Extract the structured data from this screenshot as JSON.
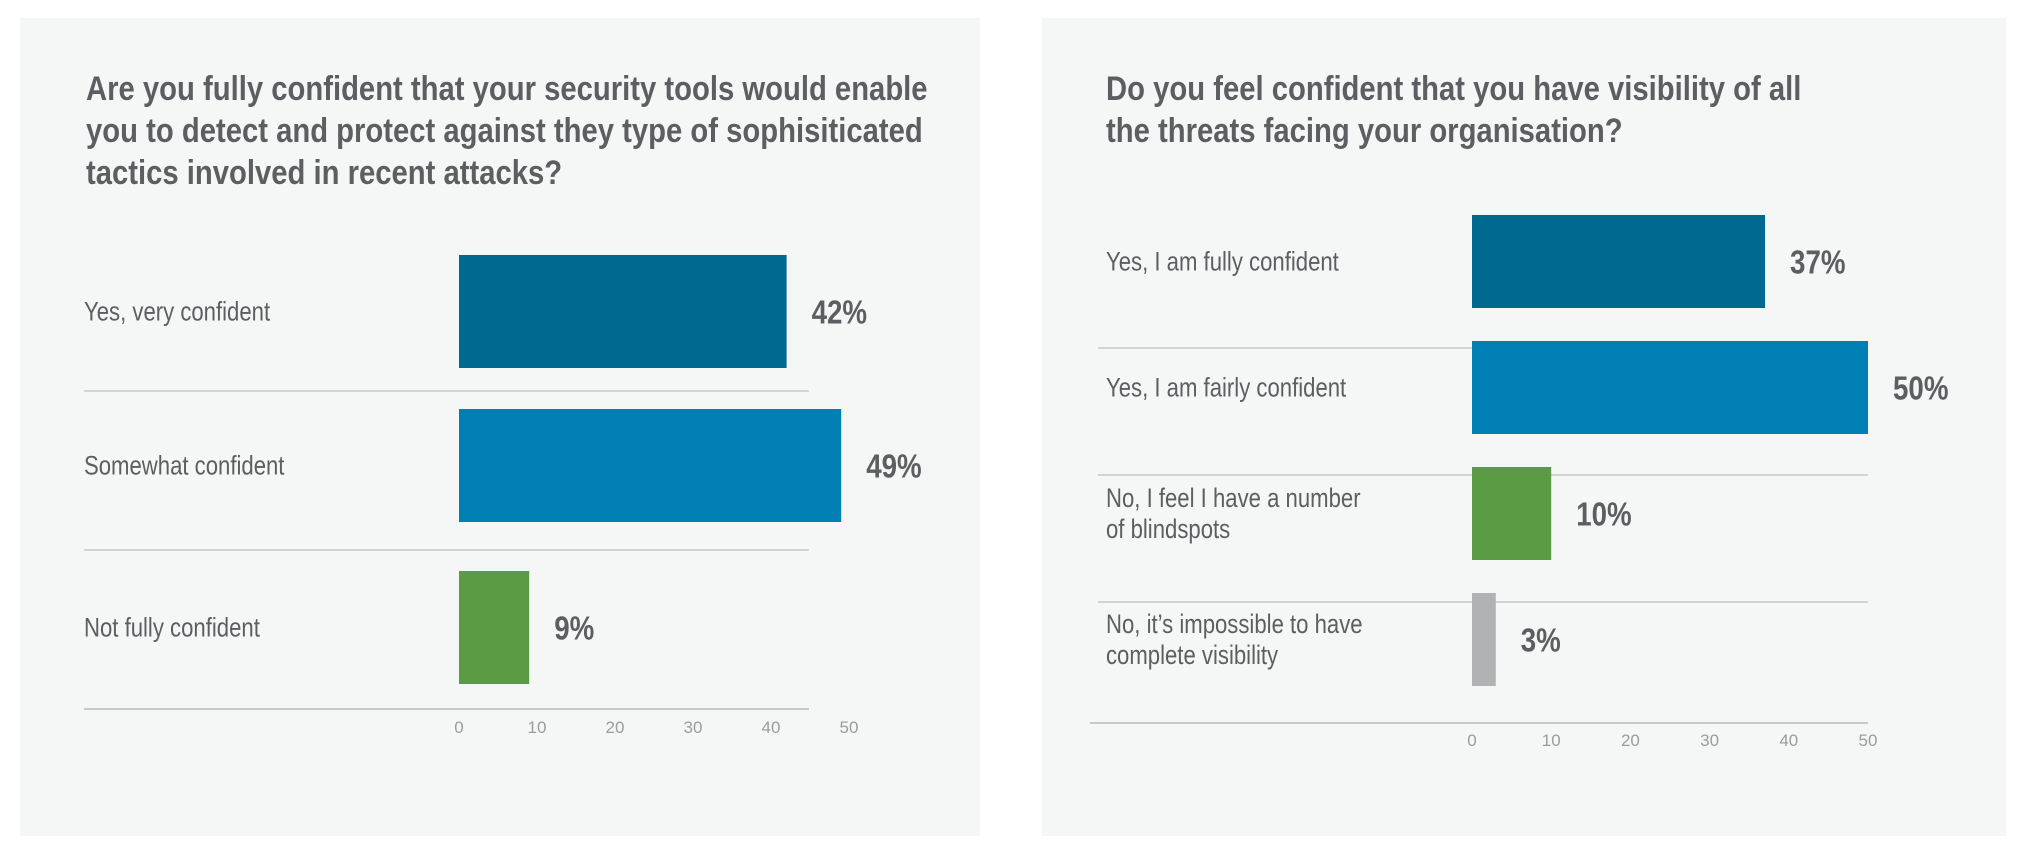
{
  "chart_data": [
    {
      "type": "bar",
      "orientation": "horizontal",
      "title": "Are you fully confident that your security tools would enable you to detect and protect against they type of sophisiticated tactics involved in recent attacks?",
      "categories": [
        "Yes, very confident",
        "Somewhat confident",
        "Not fully confident"
      ],
      "values": [
        42,
        49,
        9
      ],
      "labels": [
        "42%",
        "49%",
        "9%"
      ],
      "colors": [
        "#00698f",
        "#007fb5",
        "#5b9b43"
      ],
      "xlim": [
        0,
        50
      ],
      "ticks": [
        "0",
        "10",
        "20",
        "30",
        "40",
        "50"
      ],
      "xlabel": "",
      "ylabel": "",
      "grid": false
    },
    {
      "type": "bar",
      "orientation": "horizontal",
      "title": "Do you feel confident that you have visibility of all the threats facing your organisation?",
      "categories": [
        "Yes, I am fully confident",
        "Yes, I am fairly confident",
        "No, I feel I have a number of blindspots",
        "No, it’s impossible to have complete visibility"
      ],
      "category_lines": [
        [
          "Yes, I am fully confident"
        ],
        [
          "Yes, I am fairly confident"
        ],
        [
          "No, I feel I have a number",
          "of blindspots"
        ],
        [
          "No, it’s impossible to have",
          "complete visibility"
        ]
      ],
      "values": [
        37,
        50,
        10,
        3
      ],
      "labels": [
        "37%",
        "50%",
        "10%",
        "3%"
      ],
      "colors": [
        "#00698f",
        "#007fb5",
        "#5b9b43",
        "#b1b2b3"
      ],
      "xlim": [
        0,
        50
      ],
      "ticks": [
        "0",
        "10",
        "20",
        "30",
        "40",
        "50"
      ],
      "xlabel": "",
      "ylabel": "",
      "grid": false
    }
  ]
}
